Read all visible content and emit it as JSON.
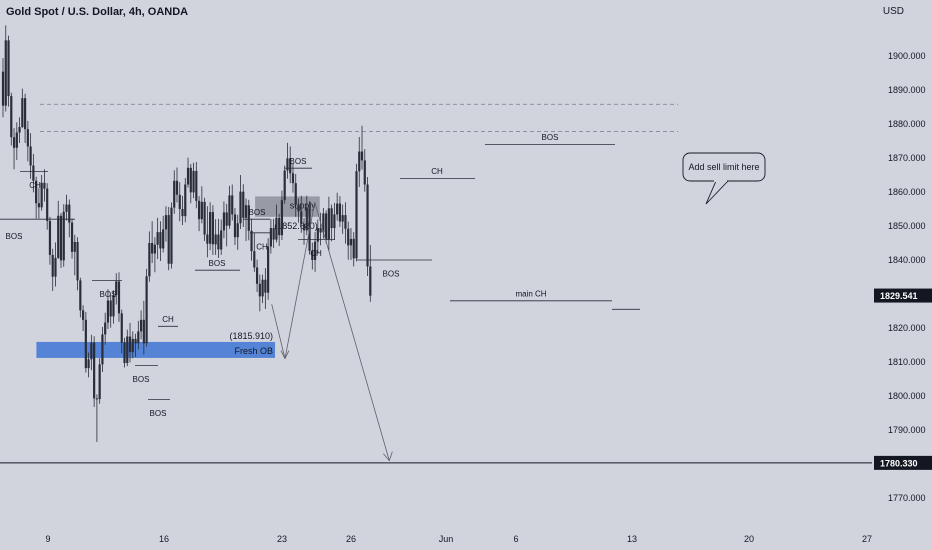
{
  "header": {
    "title": "Gold Spot / U.S. Dollar, 4h, OANDA",
    "currency": "USD"
  },
  "colors": {
    "background": "#d1d4dc",
    "candle": "#2a2e39",
    "price_line": "#131722",
    "fresh_ob_zone": "#4e7fd6",
    "supply_zone": "#9598a1",
    "bos_line": "#2a2e39",
    "level_dash": "#787b86"
  },
  "chart_data": {
    "type": "candlestick",
    "title": "Gold Spot / U.S. Dollar, 4h, OANDA",
    "y_unit": "USD",
    "ylim": [
      1765,
      1910
    ],
    "x_ticks": [
      "9",
      "16",
      "23",
      "26",
      "Jun",
      "6",
      "13",
      "20",
      "27"
    ],
    "y_ticks": [
      1770,
      1780,
      1790,
      1800,
      1810,
      1820,
      1830,
      1840,
      1850,
      1860,
      1870,
      1880,
      1890,
      1900
    ],
    "y_tick_labels": [
      "1770.000",
      "1780.000",
      "1790.000",
      "1800.000",
      "1810.000",
      "1820.000",
      "1830.000",
      "1840.000",
      "1850.000",
      "1860.000",
      "1870.000",
      "1880.000",
      "1890.000",
      "1900.000"
    ],
    "current_price": 1829.541,
    "current_price_label": "1829.541",
    "target_level": 1780.33,
    "target_label": "1780.330",
    "dashed_levels": [
      1885.8,
      1877.8
    ],
    "zones": [
      {
        "name": "supply",
        "label": "supply",
        "value_label": "(1852.680)",
        "top": 1858.7,
        "bottom": 1852.7,
        "start_day": 12.5,
        "end_day": 16.4
      },
      {
        "name": "fresh-ob",
        "label": "Fresh OB",
        "value_label": "(1815.910)",
        "top": 1815.9,
        "bottom": 1811.2,
        "start_day": -0.7,
        "end_day": 13.7
      }
    ],
    "callout": "Add sell limit here",
    "structure_labels": [
      "BOS",
      "CH",
      "BOS",
      "BOS",
      "CH",
      "BOS",
      "BOS",
      "BOS",
      "BOS",
      "CH",
      "CH",
      "BOS",
      "CH",
      "BOS",
      "main CH"
    ],
    "projection": [
      {
        "day": 13.5,
        "price": 1827
      },
      {
        "day": 14.3,
        "price": 1811
      },
      {
        "day": 16.1,
        "price": 1857
      },
      {
        "day": 20.6,
        "price": 1781
      }
    ],
    "candles": [
      [
        1895.4,
        1899.4,
        1882.0,
        1885.4
      ],
      [
        1885.4,
        1909.0,
        1883.7,
        1904.6
      ],
      [
        1904.6,
        1906.0,
        1885.1,
        1888.2
      ],
      [
        1888.2,
        1889.2,
        1873.7,
        1876.1
      ],
      [
        1876.1,
        1878.8,
        1866.7,
        1873.0
      ],
      [
        1873.0,
        1880.5,
        1869.4,
        1877.5
      ],
      [
        1877.5,
        1882.0,
        1874.4,
        1879.1
      ],
      [
        1879.1,
        1890.4,
        1878.8,
        1887.6
      ],
      [
        1887.6,
        1888.9,
        1874.4,
        1878.5
      ],
      [
        1878.5,
        1880.9,
        1869.0,
        1873.4
      ],
      [
        1873.4,
        1877.3,
        1863.9,
        1867.8
      ],
      [
        1867.8,
        1871.2,
        1859.9,
        1863.3
      ],
      [
        1863.3,
        1864.5,
        1852.2,
        1856.7
      ],
      [
        1856.7,
        1861.1,
        1852.2,
        1855.5
      ],
      [
        1855.5,
        1865.0,
        1854.5,
        1862.7
      ],
      [
        1862.7,
        1866.7,
        1857.2,
        1861.0
      ],
      [
        1861.0,
        1862.6,
        1848.9,
        1851.5
      ],
      [
        1851.5,
        1852.7,
        1838.6,
        1841.5
      ],
      [
        1841.5,
        1843.3,
        1830.9,
        1835.1
      ],
      [
        1835.1,
        1845.2,
        1832.2,
        1840.6
      ],
      [
        1840.6,
        1857.4,
        1840.3,
        1853.0
      ],
      [
        1853.0,
        1853.8,
        1837.7,
        1839.9
      ],
      [
        1839.9,
        1856.4,
        1838.0,
        1854.2
      ],
      [
        1854.2,
        1859.2,
        1851.6,
        1856.3
      ],
      [
        1856.3,
        1857.8,
        1846.7,
        1851.0
      ],
      [
        1851.0,
        1852.2,
        1840.4,
        1842.4
      ],
      [
        1842.4,
        1847.4,
        1835.5,
        1845.3
      ],
      [
        1845.3,
        1846.7,
        1831.1,
        1834.0
      ],
      [
        1834.0,
        1834.8,
        1823.1,
        1825.2
      ],
      [
        1825.2,
        1826.7,
        1819.1,
        1822.4
      ],
      [
        1822.4,
        1824.7,
        1806.9,
        1808.2
      ],
      [
        1808.2,
        1812.8,
        1805.5,
        1810.8
      ],
      [
        1810.8,
        1818.0,
        1807.6,
        1815.7
      ],
      [
        1815.7,
        1817.6,
        1796.8,
        1799.3
      ],
      [
        1799.3,
        1800.5,
        1786.5,
        1799.1
      ],
      [
        1799.1,
        1811.1,
        1797.7,
        1809.3
      ],
      [
        1809.3,
        1820.3,
        1807.1,
        1818.1
      ],
      [
        1818.1,
        1824.5,
        1815.1,
        1821.6
      ],
      [
        1821.6,
        1831.4,
        1819.7,
        1828.1
      ],
      [
        1828.1,
        1829.6,
        1820.1,
        1823.4
      ],
      [
        1823.4,
        1831.1,
        1821.3,
        1829.7
      ],
      [
        1829.7,
        1836.1,
        1826.9,
        1833.7
      ],
      [
        1833.7,
        1836.4,
        1821.8,
        1824.3
      ],
      [
        1824.3,
        1825.4,
        1812.5,
        1815.7
      ],
      [
        1815.7,
        1817.1,
        1808.4,
        1809.7
      ],
      [
        1809.7,
        1819.5,
        1808.8,
        1817.5
      ],
      [
        1817.5,
        1821.5,
        1809.9,
        1812.9
      ],
      [
        1812.9,
        1819.0,
        1811.1,
        1816.8
      ],
      [
        1816.8,
        1818.3,
        1811.5,
        1815.5
      ],
      [
        1815.5,
        1822.1,
        1813.7,
        1819.0
      ],
      [
        1819.0,
        1825.2,
        1816.7,
        1822.4
      ],
      [
        1822.4,
        1828.0,
        1812.2,
        1815.5
      ],
      [
        1815.5,
        1837.4,
        1814.5,
        1835.2
      ],
      [
        1835.2,
        1848.4,
        1833.6,
        1845.0
      ],
      [
        1845.0,
        1851.4,
        1839.1,
        1841.9
      ],
      [
        1841.9,
        1846.7,
        1836.4,
        1844.5
      ],
      [
        1844.5,
        1852.4,
        1840.3,
        1848.2
      ],
      [
        1848.2,
        1851.4,
        1839.7,
        1843.4
      ],
      [
        1843.4,
        1853.0,
        1842.2,
        1849.0
      ],
      [
        1849.0,
        1855.8,
        1845.4,
        1853.2
      ],
      [
        1853.2,
        1855.6,
        1837.0,
        1838.9
      ],
      [
        1838.9,
        1856.9,
        1837.5,
        1855.4
      ],
      [
        1855.4,
        1866.4,
        1853.6,
        1863.3
      ],
      [
        1863.3,
        1867.2,
        1856.9,
        1859.2
      ],
      [
        1859.2,
        1862.9,
        1851.4,
        1855.0
      ],
      [
        1855.0,
        1858.9,
        1850.3,
        1852.9
      ],
      [
        1852.9,
        1864.1,
        1851.1,
        1862.2
      ],
      [
        1862.2,
        1870.1,
        1861.3,
        1867.1
      ],
      [
        1867.1,
        1868.2,
        1856.7,
        1859.9
      ],
      [
        1859.9,
        1868.6,
        1858.2,
        1866.2
      ],
      [
        1866.2,
        1868.8,
        1855.2,
        1857.4
      ],
      [
        1857.4,
        1858.8,
        1848.5,
        1852.0
      ],
      [
        1852.0,
        1861.7,
        1850.8,
        1857.1
      ],
      [
        1857.1,
        1858.3,
        1845.6,
        1847.5
      ],
      [
        1847.5,
        1855.8,
        1840.8,
        1844.8
      ],
      [
        1844.8,
        1857.0,
        1842.9,
        1854.1
      ],
      [
        1854.1,
        1856.1,
        1841.5,
        1844.6
      ],
      [
        1844.6,
        1852.0,
        1841.5,
        1847.5
      ],
      [
        1847.5,
        1852.1,
        1840.6,
        1843.1
      ],
      [
        1843.1,
        1851.9,
        1841.5,
        1848.7
      ],
      [
        1848.7,
        1857.2,
        1846.4,
        1854.0
      ],
      [
        1854.0,
        1856.5,
        1844.0,
        1850.1
      ],
      [
        1850.1,
        1861.8,
        1849.2,
        1859.0
      ],
      [
        1859.0,
        1862.2,
        1851.6,
        1853.4
      ],
      [
        1853.4,
        1855.3,
        1844.4,
        1846.7
      ],
      [
        1846.7,
        1853.3,
        1843.0,
        1850.8
      ],
      [
        1850.8,
        1865.0,
        1849.1,
        1860.1
      ],
      [
        1860.1,
        1862.3,
        1849.7,
        1852.4
      ],
      [
        1852.4,
        1858.1,
        1845.6,
        1856.1
      ],
      [
        1856.1,
        1857.7,
        1845.8,
        1848.6
      ],
      [
        1848.6,
        1852.0,
        1839.8,
        1842.6
      ],
      [
        1842.6,
        1848.0,
        1836.5,
        1837.8
      ],
      [
        1837.8,
        1840.1,
        1830.6,
        1833.0
      ],
      [
        1833.0,
        1835.7,
        1824.9,
        1829.3
      ],
      [
        1829.3,
        1835.7,
        1827.3,
        1834.2
      ],
      [
        1834.2,
        1837.6,
        1825.6,
        1830.4
      ],
      [
        1830.4,
        1846.4,
        1828.3,
        1844.0
      ],
      [
        1844.0,
        1852.0,
        1841.9,
        1849.4
      ],
      [
        1849.4,
        1852.1,
        1843.5,
        1846.0
      ],
      [
        1846.0,
        1856.3,
        1845.2,
        1852.4
      ],
      [
        1852.4,
        1853.6,
        1844.1,
        1847.3
      ],
      [
        1847.3,
        1860.4,
        1845.9,
        1857.6
      ],
      [
        1857.6,
        1867.8,
        1856.5,
        1866.3
      ],
      [
        1866.3,
        1874.5,
        1863.9,
        1869.9
      ],
      [
        1869.9,
        1873.4,
        1862.6,
        1865.5
      ],
      [
        1865.5,
        1868.5,
        1859.8,
        1862.6
      ],
      [
        1862.6,
        1865.3,
        1852.7,
        1856.2
      ],
      [
        1856.2,
        1858.1,
        1851.0,
        1854.3
      ],
      [
        1854.3,
        1858.9,
        1848.0,
        1850.6
      ],
      [
        1850.6,
        1852.3,
        1844.5,
        1848.7
      ],
      [
        1848.7,
        1858.9,
        1847.3,
        1855.2
      ],
      [
        1855.2,
        1857.3,
        1841.6,
        1842.7
      ],
      [
        1842.7,
        1845.1,
        1837.2,
        1840.0
      ],
      [
        1840.0,
        1848.2,
        1836.5,
        1845.4
      ],
      [
        1845.4,
        1851.9,
        1841.9,
        1849.4
      ],
      [
        1849.4,
        1853.9,
        1844.3,
        1848.1
      ],
      [
        1848.1,
        1855.3,
        1846.3,
        1853.7
      ],
      [
        1853.7,
        1854.6,
        1844.9,
        1846.1
      ],
      [
        1846.1,
        1858.6,
        1842.8,
        1855.2
      ],
      [
        1855.2,
        1856.3,
        1845.5,
        1849.4
      ],
      [
        1849.4,
        1856.8,
        1845.9,
        1853.4
      ],
      [
        1853.4,
        1859.8,
        1851.6,
        1856.6
      ],
      [
        1856.6,
        1858.8,
        1849.7,
        1851.3
      ],
      [
        1851.3,
        1856.3,
        1847.7,
        1853.2
      ],
      [
        1853.2,
        1857.0,
        1844.8,
        1849.2
      ],
      [
        1849.2,
        1851.3,
        1840.1,
        1844.3
      ],
      [
        1844.3,
        1849.4,
        1840.0,
        1846.2
      ],
      [
        1846.2,
        1848.2,
        1838.1,
        1840.5
      ],
      [
        1840.5,
        1868.3,
        1839.6,
        1866.1
      ],
      [
        1866.1,
        1876.2,
        1861.5,
        1871.9
      ],
      [
        1871.9,
        1879.5,
        1866.6,
        1869.3
      ],
      [
        1869.3,
        1872.6,
        1860.1,
        1862.2
      ],
      [
        1862.2,
        1864.4,
        1835.3,
        1838.1
      ],
      [
        1838.1,
        1844.4,
        1827.7,
        1829.5
      ]
    ]
  },
  "annotations": {
    "bos_1": "BOS",
    "ch_1": "CH",
    "bos_2": "BOS",
    "bos_3": "BOS",
    "ch_2": "CH",
    "bos_4": "BOS",
    "bos_5": "BOS",
    "bos_6": "BOS",
    "bos_7": "BOS",
    "ch_3": "CH",
    "ch_4": "CH",
    "bos_8": "BOS",
    "ch_5": "CH",
    "bos_9": "BOS",
    "main_ch": "main CH"
  }
}
